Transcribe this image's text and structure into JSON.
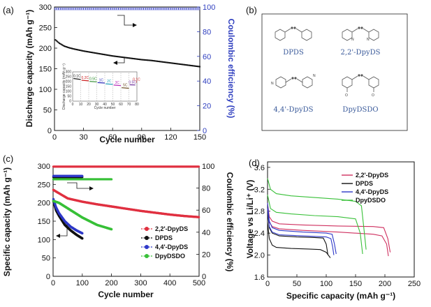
{
  "colors": {
    "red": "#e03040",
    "black": "#111111",
    "blue": "#2e38c8",
    "green": "#38c038",
    "pink": "#cf2f5f",
    "right_axis_blue": "#2f3fbf",
    "mol_text": "#3a5a9a"
  },
  "panels": {
    "a": {
      "label": "(a)"
    },
    "b": {
      "label": "(b)"
    },
    "c": {
      "label": "(c)"
    },
    "d": {
      "label": "(d)"
    }
  },
  "chart_data": [
    {
      "id": "a",
      "type": "line",
      "xlabel": "Cycle number",
      "ylabel": "Discharge capacity (mAh g⁻¹)",
      "y2label": "Coulombic efficiency (%)",
      "xlim": [
        0,
        150
      ],
      "ylim": [
        0,
        300
      ],
      "y2lim": [
        0,
        100
      ],
      "xticks": [
        "0",
        "30",
        "60",
        "90",
        "120",
        "150"
      ],
      "yticks": [
        "0",
        "50",
        "100",
        "150",
        "200",
        "250",
        "300"
      ],
      "y2ticks": [
        "0",
        "20",
        "40",
        "60",
        "80",
        "100"
      ],
      "capacity": {
        "x": [
          1,
          5,
          10,
          15,
          20,
          30,
          40,
          50,
          60,
          70,
          80,
          90,
          100,
          110,
          120,
          130,
          140,
          150
        ],
        "y": [
          220,
          212,
          205,
          201,
          198,
          193,
          189,
          185,
          181,
          178,
          175,
          172,
          170,
          167,
          164,
          161,
          158,
          155
        ]
      },
      "efficiency": {
        "x": [
          1,
          150
        ],
        "y": [
          98.5,
          98.5
        ]
      },
      "inset": {
        "xlabel": "Cycle number",
        "ylabel": "Discharge capacity (mAh g⁻¹)",
        "xlim": [
          0,
          80
        ],
        "ylim": [
          0,
          300
        ],
        "xticks": [
          "0",
          "10",
          "20",
          "30",
          "40",
          "50",
          "60",
          "70",
          "80"
        ],
        "yticks": [
          "0",
          "50",
          "100",
          "150",
          "200",
          "250",
          "300"
        ],
        "labels": [
          "0.1C",
          "0.2C",
          "0.5C",
          "1C",
          "2C",
          "3C",
          "5C",
          "0.5C",
          "0.1C"
        ],
        "segments": [
          {
            "x": [
              1,
              10
            ],
            "y": [
              232,
              222
            ],
            "color": "#1a1a1a"
          },
          {
            "x": [
              11,
              20
            ],
            "y": [
              214,
              208
            ],
            "color": "#cc2020"
          },
          {
            "x": [
              21,
              30
            ],
            "y": [
              202,
              198
            ],
            "color": "#2a8a2a"
          },
          {
            "x": [
              31,
              40
            ],
            "y": [
              190,
              186
            ],
            "color": "#2a2ab8"
          },
          {
            "x": [
              41,
              50
            ],
            "y": [
              178,
              172
            ],
            "color": "#20a0b8"
          },
          {
            "x": [
              51,
              60
            ],
            "y": [
              165,
              160
            ],
            "color": "#b82ab8"
          },
          {
            "x": [
              61,
              70
            ],
            "y": [
              138,
              132
            ],
            "color": "#6a4a20"
          },
          {
            "x": [
              71,
              78
            ],
            "y": [
              168,
              166
            ],
            "color": "#6a2a9a"
          },
          {
            "x": [
              79,
              80
            ],
            "y": [
              198,
              196
            ],
            "color": "#cc2020"
          }
        ]
      }
    },
    {
      "id": "c",
      "type": "scatter",
      "xlabel": "Cycle number",
      "ylabel": "Specific capacity (mAh g⁻¹)",
      "y2label": "Coulombic efficiency (%)",
      "xlim": [
        0,
        500
      ],
      "ylim": [
        0,
        300
      ],
      "y2lim": [
        0,
        100
      ],
      "xticks": [
        "0",
        "100",
        "200",
        "300",
        "400",
        "500"
      ],
      "yticks": [
        "0",
        "50",
        "100",
        "150",
        "200",
        "250",
        "300"
      ],
      "y2ticks": [
        "0",
        "20",
        "40",
        "60",
        "80",
        "100"
      ],
      "legend": [
        "2,2'-DpyDS",
        "DPDS",
        "4,4'-DpyDS",
        "DpyDSDO"
      ],
      "series": [
        {
          "name": "2,2'-DpyDS",
          "color": "#e03040",
          "capacity_x": [
            1,
            50,
            100,
            150,
            200,
            250,
            300,
            350,
            400,
            450,
            500
          ],
          "capacity_y": [
            235,
            212,
            203,
            196,
            190,
            184,
            178,
            173,
            168,
            164,
            161
          ],
          "eff_x": [
            1,
            500
          ],
          "eff_y": [
            99.5,
            99.5
          ]
        },
        {
          "name": "DPDS",
          "color": "#111111",
          "capacity_x": [
            1,
            10,
            20,
            40,
            60,
            80,
            100
          ],
          "capacity_y": [
            205,
            180,
            165,
            140,
            125,
            113,
            103
          ],
          "eff_x": [
            1,
            100
          ],
          "eff_y": [
            90,
            90
          ]
        },
        {
          "name": "4,4'-DpyDS",
          "color": "#2e38c8",
          "capacity_x": [
            1,
            10,
            20,
            40,
            60,
            80,
            100
          ],
          "capacity_y": [
            210,
            188,
            172,
            150,
            135,
            125,
            117
          ],
          "eff_x": [
            1,
            100
          ],
          "eff_y": [
            91,
            91
          ]
        },
        {
          "name": "DpyDSDO",
          "color": "#38c038",
          "capacity_x": [
            1,
            20,
            50,
            100,
            150,
            200
          ],
          "capacity_y": [
            205,
            200,
            185,
            160,
            140,
            128
          ],
          "eff_x": [
            1,
            200
          ],
          "eff_y": [
            88,
            88
          ]
        }
      ]
    },
    {
      "id": "d",
      "type": "line",
      "xlabel": "Specific capacity (mAh g⁻¹)",
      "ylabel": "Voltage vs Li/Li⁺ (V)",
      "xlim": [
        0,
        250
      ],
      "ylim": [
        1.6,
        3.7
      ],
      "xticks": [
        "0",
        "50",
        "100",
        "150",
        "200",
        "250"
      ],
      "yticks": [
        "1.6",
        "2.0",
        "2.4",
        "2.8",
        "3.2",
        "3.6"
      ],
      "legend": [
        "2,2'-DpyDS",
        "DPDS",
        "4,4'-DpyDS",
        "DpyDSDO"
      ],
      "series": [
        {
          "name": "2,2'-DpyDS",
          "color": "#cf2f5f",
          "curves": [
            {
              "x": [
                0,
                3,
                8,
                20,
                60,
                120,
                180,
                198,
                205,
                209
              ],
              "y": [
                2.95,
                2.7,
                2.62,
                2.57,
                2.55,
                2.53,
                2.52,
                2.5,
                2.3,
                2.05
              ]
            },
            {
              "x": [
                0,
                3,
                8,
                20,
                60,
                120,
                180,
                195,
                203,
                206
              ],
              "y": [
                2.85,
                2.6,
                2.52,
                2.48,
                2.45,
                2.42,
                2.38,
                2.35,
                2.2,
                1.98
              ]
            }
          ]
        },
        {
          "name": "DPDS",
          "color": "#111111",
          "curves": [
            {
              "x": [
                0,
                3,
                8,
                20,
                50,
                80,
                95,
                100,
                103
              ],
              "y": [
                2.8,
                2.5,
                2.4,
                2.35,
                2.33,
                2.32,
                2.31,
                2.2,
                2.0
              ]
            },
            {
              "x": [
                0,
                3,
                8,
                15,
                40,
                70,
                90,
                100,
                107
              ],
              "y": [
                2.6,
                2.3,
                2.18,
                2.14,
                2.12,
                2.11,
                2.1,
                2.05,
                1.95
              ]
            }
          ]
        },
        {
          "name": "4,4'-DpyDS",
          "color": "#2e38c8",
          "curves": [
            {
              "x": [
                0,
                3,
                8,
                20,
                60,
                100,
                110,
                114,
                117
              ],
              "y": [
                2.95,
                2.62,
                2.5,
                2.45,
                2.42,
                2.4,
                2.38,
                2.2,
                2.02
              ]
            },
            {
              "x": [
                0,
                3,
                8,
                20,
                60,
                100,
                108,
                111,
                113
              ],
              "y": [
                2.85,
                2.52,
                2.42,
                2.37,
                2.35,
                2.33,
                2.3,
                2.15,
                2.0
              ]
            }
          ]
        },
        {
          "name": "DpyDSDO",
          "color": "#38c038",
          "curves": [
            {
              "x": [
                0,
                5,
                15,
                40,
                80,
                120,
                150,
                160,
                164,
                168
              ],
              "y": [
                3.4,
                3.2,
                3.12,
                3.08,
                3.05,
                3.02,
                2.98,
                2.9,
                2.5,
                2.1
              ]
            },
            {
              "x": [
                0,
                5,
                15,
                40,
                80,
                120,
                150,
                158,
                162
              ],
              "y": [
                3.1,
                2.85,
                2.78,
                2.75,
                2.72,
                2.7,
                2.66,
                2.4,
                2.02
              ]
            }
          ]
        }
      ]
    }
  ],
  "molecules": [
    {
      "id": "DPDS",
      "label": "DPDS"
    },
    {
      "id": "22DpyDS",
      "label": "2,2'-DpyDS"
    },
    {
      "id": "44DpyDS",
      "label": "4,4'-DpyDS"
    },
    {
      "id": "DpyDSDO",
      "label": "DpyDSDO"
    }
  ]
}
